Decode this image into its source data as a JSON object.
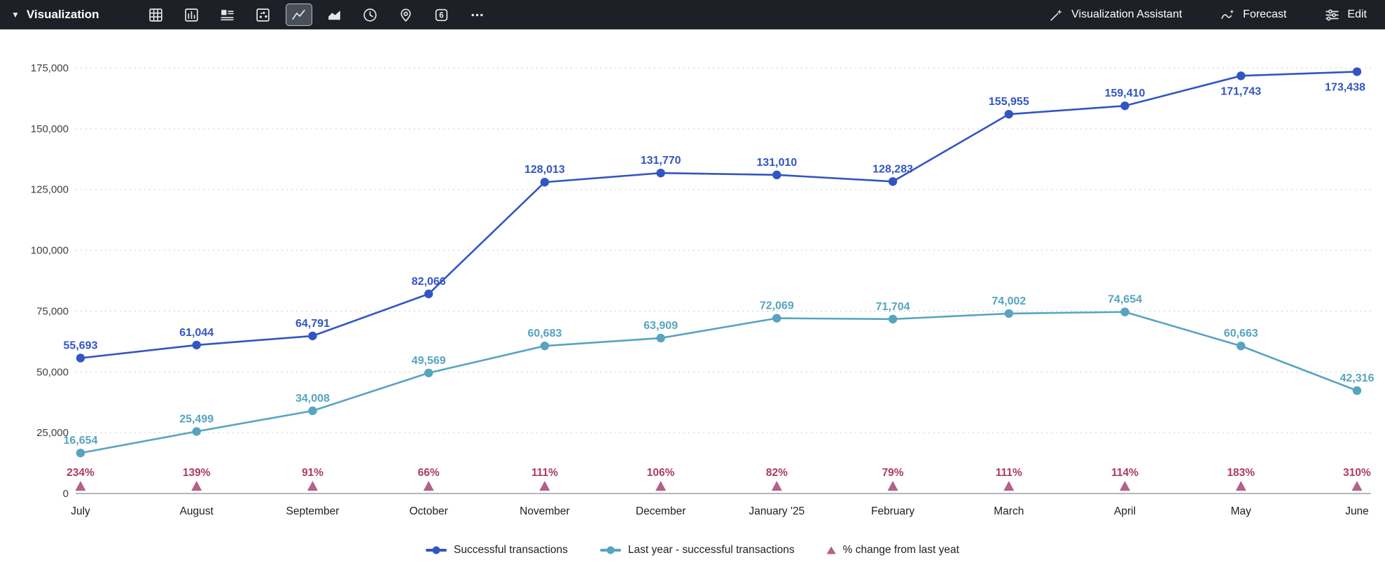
{
  "toolbar": {
    "title": "Visualization",
    "chart_count_badge": "6",
    "icons": [
      "table-icon",
      "bar-chart-icon",
      "text-summary-icon",
      "scatter-icon",
      "line-chart-icon",
      "area-chart-icon",
      "time-series-icon",
      "map-pin-icon",
      "number-6-icon",
      "more-icon"
    ],
    "selected_icon": "line-chart-icon",
    "assistant_label": "Visualization Assistant",
    "forecast_label": "Forecast",
    "edit_label": "Edit"
  },
  "chart_data": {
    "type": "line",
    "categories": [
      "July",
      "August",
      "September",
      "October",
      "November",
      "December",
      "January '25",
      "February",
      "March",
      "April",
      "May",
      "June"
    ],
    "series": [
      {
        "name": "Successful transactions",
        "color": "#3355c4",
        "values": [
          55693,
          61044,
          64791,
          82066,
          128013,
          131770,
          131010,
          128283,
          155955,
          159410,
          171743,
          173438
        ]
      },
      {
        "name": "Last year - successful transactions",
        "color": "#57a4c0",
        "values": [
          16654,
          25499,
          34008,
          49569,
          60683,
          63909,
          72069,
          71704,
          74002,
          74654,
          60663,
          42316
        ]
      }
    ],
    "percent_series": {
      "name": "% change from last yeat",
      "color": "#b3608a",
      "label_color": "#ac3a66",
      "values": [
        "234%",
        "139%",
        "91%",
        "66%",
        "111%",
        "106%",
        "82%",
        "79%",
        "111%",
        "114%",
        "183%",
        "310%"
      ]
    },
    "title": "",
    "xlabel": "",
    "ylabel": "",
    "ylim": [
      0,
      175000
    ],
    "yticks": [
      0,
      25000,
      50000,
      75000,
      100000,
      125000,
      150000,
      175000
    ],
    "grid": "horizontal-dotted",
    "legend_position": "bottom"
  }
}
